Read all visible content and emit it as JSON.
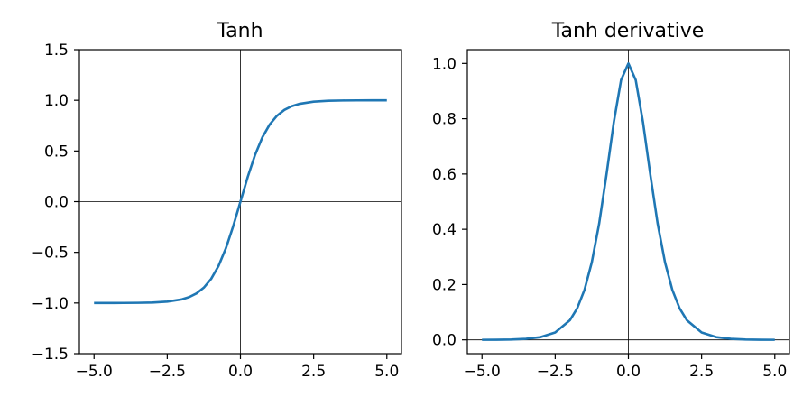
{
  "chart_data": [
    {
      "type": "line",
      "title": "Tanh",
      "xlabel": "",
      "ylabel": "",
      "xlim": [
        -5.5,
        5.5
      ],
      "ylim": [
        -1.5,
        1.5
      ],
      "xticks": [
        -5,
        -2.5,
        0,
        2.5,
        5
      ],
      "xtick_labels": [
        "−5.0",
        "−2.5",
        "0.0",
        "2.5",
        "5.0"
      ],
      "yticks": [
        -1.5,
        -1,
        -0.5,
        0,
        0.5,
        1,
        1.5
      ],
      "ytick_labels": [
        "−1.5",
        "−1.0",
        "−0.5",
        "0.0",
        "0.5",
        "1.0",
        "1.5"
      ],
      "grid": false,
      "reference_lines": {
        "x0": true,
        "y0": true
      },
      "series": [
        {
          "color": "#1f77b4",
          "x": [
            -5,
            -4.5,
            -4,
            -3.5,
            -3,
            -2.5,
            -2,
            -1.75,
            -1.5,
            -1.25,
            -1,
            -0.75,
            -0.5,
            -0.25,
            0,
            0.25,
            0.5,
            0.75,
            1,
            1.25,
            1.5,
            1.75,
            2,
            2.5,
            3,
            3.5,
            4,
            4.5,
            5
          ],
          "y": [
            -0.9999,
            -0.9998,
            -0.9993,
            -0.9982,
            -0.9951,
            -0.9866,
            -0.964,
            -0.9414,
            -0.9051,
            -0.8483,
            -0.7616,
            -0.6351,
            -0.4621,
            -0.2449,
            0,
            0.2449,
            0.4621,
            0.6351,
            0.7616,
            0.8483,
            0.9051,
            0.9414,
            0.964,
            0.9866,
            0.9951,
            0.9982,
            0.9993,
            0.9998,
            0.9999
          ]
        }
      ]
    },
    {
      "type": "line",
      "title": "Tanh derivative",
      "xlabel": "",
      "ylabel": "",
      "xlim": [
        -5.5,
        5.5
      ],
      "ylim": [
        -0.05,
        1.05
      ],
      "xticks": [
        -5,
        -2.5,
        0,
        2.5,
        5
      ],
      "xtick_labels": [
        "−5.0",
        "−2.5",
        "0.0",
        "2.5",
        "5.0"
      ],
      "yticks": [
        0,
        0.2,
        0.4,
        0.6,
        0.8,
        1
      ],
      "ytick_labels": [
        "0.0",
        "0.2",
        "0.4",
        "0.6",
        "0.8",
        "1.0"
      ],
      "grid": false,
      "reference_lines": {
        "x0": true,
        "y0": true
      },
      "series": [
        {
          "color": "#1f77b4",
          "x": [
            -5,
            -4.5,
            -4,
            -3.5,
            -3,
            -2.5,
            -2,
            -1.75,
            -1.5,
            -1.25,
            -1,
            -0.75,
            -0.5,
            -0.25,
            0,
            0.25,
            0.5,
            0.75,
            1,
            1.25,
            1.5,
            1.75,
            2,
            2.5,
            3,
            3.5,
            4,
            4.5,
            5
          ],
          "y": [
            0.0002,
            0.0005,
            0.0013,
            0.0036,
            0.0099,
            0.0266,
            0.0707,
            0.1138,
            0.1807,
            0.2805,
            0.42,
            0.5967,
            0.7864,
            0.94,
            1,
            0.94,
            0.7864,
            0.5967,
            0.42,
            0.2805,
            0.1807,
            0.1138,
            0.0707,
            0.0266,
            0.0099,
            0.0036,
            0.0013,
            0.0005,
            0.0002
          ]
        }
      ]
    }
  ]
}
